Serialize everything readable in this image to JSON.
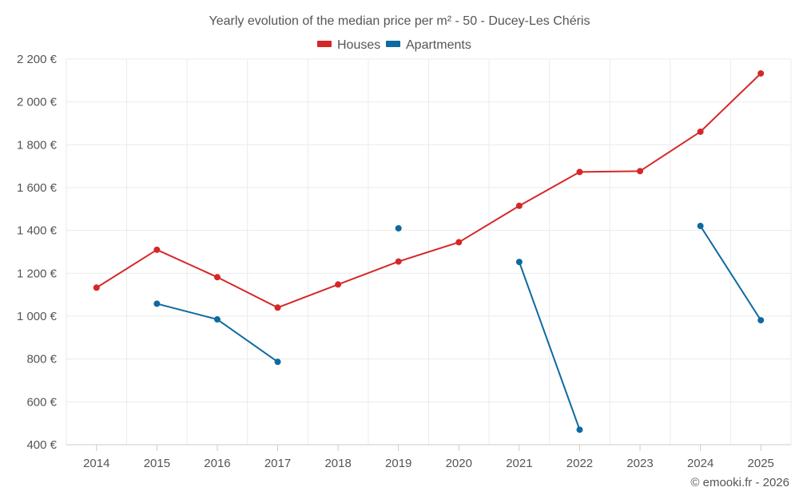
{
  "chart_data": {
    "type": "line",
    "title": "Yearly evolution of the median price per m² - 50 - Ducey-Les Chéris",
    "x": [
      "2014",
      "2015",
      "2016",
      "2017",
      "2018",
      "2019",
      "2020",
      "2021",
      "2022",
      "2023",
      "2024",
      "2025"
    ],
    "ylim": [
      400,
      2200
    ],
    "yticks": [
      400,
      600,
      800,
      1000,
      1200,
      1400,
      1600,
      1800,
      2000,
      2200
    ],
    "ytick_labels": [
      "400 €",
      "600 €",
      "800 €",
      "1 000 €",
      "1 200 €",
      "1 400 €",
      "1 600 €",
      "1 800 €",
      "2 000 €",
      "2 200 €"
    ],
    "grid": true,
    "legend_position": "top-center",
    "series": [
      {
        "name": "Houses",
        "color": "#d62728",
        "values": [
          1133,
          1310,
          1182,
          1040,
          1148,
          1255,
          1345,
          1515,
          1673,
          1677,
          1861,
          2133
        ]
      },
      {
        "name": "Apartments",
        "color": "#0e6aa0",
        "values": [
          null,
          1058,
          985,
          787,
          null,
          1410,
          null,
          1253,
          470,
          null,
          1421,
          981
        ]
      }
    ],
    "credit": "© emooki.fr - 2026"
  }
}
